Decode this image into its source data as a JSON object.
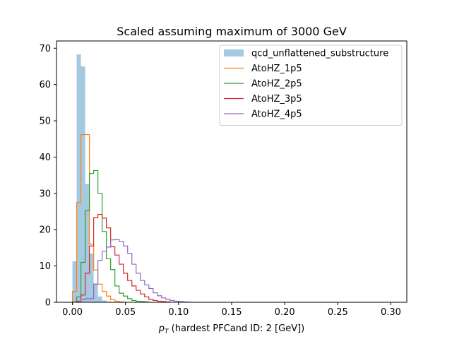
{
  "chart_data": {
    "type": "histogram",
    "title": "Scaled assuming maximum of 3000 GeV",
    "xlabel_main": "p",
    "xlabel_sub": "T",
    "xlabel_rest": " (hardest PFCand ID: 2 [GeV])",
    "ylabel": "",
    "xlim": [
      -0.015,
      0.315
    ],
    "ylim": [
      0,
      72
    ],
    "xticks": [
      0.0,
      0.05,
      0.1,
      0.15,
      0.2,
      0.25,
      0.3
    ],
    "xtick_labels": [
      "0.00",
      "0.05",
      "0.10",
      "0.15",
      "0.20",
      "0.25",
      "0.30"
    ],
    "yticks": [
      0,
      10,
      20,
      30,
      40,
      50,
      60,
      70
    ],
    "ytick_labels": [
      "0",
      "10",
      "20",
      "30",
      "40",
      "50",
      "60",
      "70"
    ],
    "legend_position": "top-right",
    "bin_width": 0.004,
    "bin_start": 0.0,
    "series": [
      {
        "name": "qcd_unflattened_substructure",
        "style": "filled",
        "color": "#1f77b4",
        "opacity": 0.4,
        "values": [
          11.3,
          68.3,
          65.0,
          32.6,
          13.4,
          5.2,
          1.6,
          0.5,
          0.2,
          0.1
        ]
      },
      {
        "name": "AtoHZ_1p5",
        "style": "step",
        "color": "#ff7f0e",
        "values": [
          3.0,
          27.5,
          46.2,
          46.2,
          16.0,
          8.9,
          5.0,
          3.0,
          1.7,
          0.7,
          0.3,
          0.1
        ]
      },
      {
        "name": "AtoHZ_2p5",
        "style": "step",
        "color": "#2ca02c",
        "values": [
          0.0,
          1.5,
          11.0,
          25.2,
          35.5,
          36.3,
          30.0,
          19.5,
          12.0,
          9.0,
          4.5,
          2.5,
          1.7,
          1.0,
          0.5,
          0.3,
          0.2,
          0.1
        ]
      },
      {
        "name": "AtoHZ_3p5",
        "style": "step",
        "color": "#d62728",
        "values": [
          0.0,
          0.3,
          2.0,
          8.0,
          15.5,
          23.3,
          24.2,
          23.2,
          20.5,
          15.3,
          13.0,
          10.5,
          8.0,
          6.0,
          4.5,
          3.3,
          2.3,
          1.5,
          0.8,
          0.5,
          0.3,
          0.2,
          0.1
        ]
      },
      {
        "name": "AtoHZ_4p5",
        "style": "step",
        "color": "#9467bd",
        "values": [
          0.0,
          0.0,
          0.7,
          1.0,
          1.0,
          5.0,
          11.5,
          14.0,
          15.2,
          17.2,
          17.3,
          16.8,
          15.5,
          13.5,
          10.5,
          8.0,
          6.0,
          4.8,
          3.8,
          2.6,
          1.8,
          1.2,
          0.8,
          0.5,
          0.3,
          0.2,
          0.1,
          0.05
        ]
      }
    ]
  }
}
